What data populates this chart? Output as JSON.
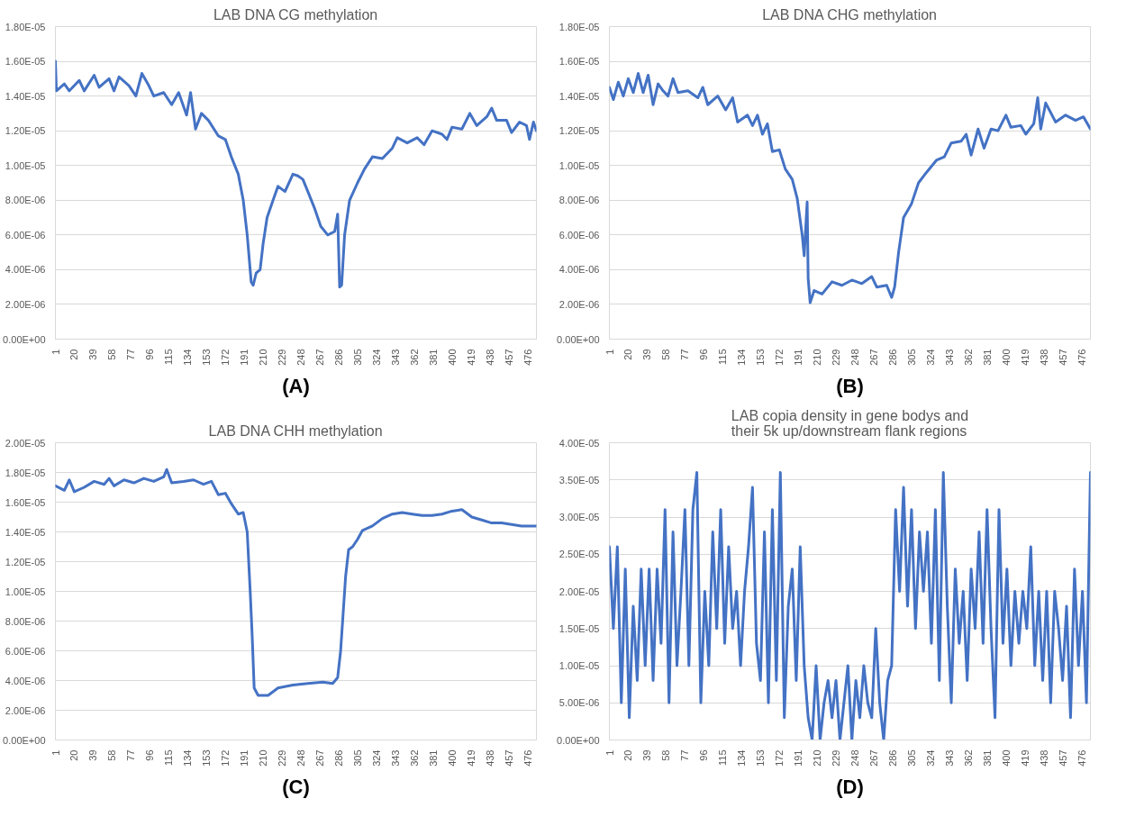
{
  "chart_data": [
    {
      "type": "line",
      "title": "LAB DNA CG methylation",
      "annotations": [
        "(A)"
      ],
      "grid": "y",
      "xlim": [
        1,
        485
      ],
      "xticks": [
        1,
        20,
        39,
        58,
        77,
        96,
        115,
        134,
        153,
        172,
        191,
        210,
        229,
        248,
        267,
        286,
        305,
        324,
        343,
        362,
        381,
        400,
        419,
        438,
        457,
        476
      ],
      "ylim": [
        0,
        1.8e-05
      ],
      "yticks": [
        {
          "value": 0,
          "label": "0.00E+00"
        },
        {
          "value": 2e-06,
          "label": "2.00E-06"
        },
        {
          "value": 4e-06,
          "label": "4.00E-06"
        },
        {
          "value": 6e-06,
          "label": "6.00E-06"
        },
        {
          "value": 8e-06,
          "label": "8.00E-06"
        },
        {
          "value": 1e-05,
          "label": "1.00E-05"
        },
        {
          "value": 1.2e-05,
          "label": "1.20E-05"
        },
        {
          "value": 1.4e-05,
          "label": "1.40E-05"
        },
        {
          "value": 1.6e-05,
          "label": "1.60E-05"
        },
        {
          "value": 1.8e-05,
          "label": "1.80E-05"
        }
      ],
      "series": [
        {
          "color": "#4472c4",
          "x": [
            1,
            2,
            10,
            15,
            25,
            30,
            40,
            45,
            55,
            60,
            65,
            75,
            82,
            88,
            95,
            100,
            110,
            118,
            125,
            133,
            137,
            142,
            148,
            155,
            165,
            172,
            178,
            185,
            190,
            194,
            198,
            200,
            203,
            207,
            210,
            214,
            220,
            225,
            232,
            240,
            245,
            250,
            255,
            262,
            268,
            275,
            282,
            285,
            287,
            289,
            292,
            297,
            305,
            312,
            320,
            330,
            340,
            345,
            355,
            365,
            372,
            380,
            390,
            395,
            400,
            410,
            418,
            425,
            435,
            440,
            445,
            455,
            460,
            468,
            475,
            478,
            482,
            485
          ],
          "values": [
            1.6e-05,
            1.43e-05,
            1.47e-05,
            1.43e-05,
            1.49e-05,
            1.43e-05,
            1.52e-05,
            1.45e-05,
            1.5e-05,
            1.43e-05,
            1.51e-05,
            1.46e-05,
            1.4e-05,
            1.53e-05,
            1.46e-05,
            1.4e-05,
            1.42e-05,
            1.35e-05,
            1.42e-05,
            1.29e-05,
            1.42e-05,
            1.21e-05,
            1.3e-05,
            1.26e-05,
            1.17e-05,
            1.15e-05,
            1.05e-05,
            9.5e-06,
            8e-06,
            6e-06,
            3.3e-06,
            3.1e-06,
            3.8e-06,
            4e-06,
            5.5e-06,
            7e-06,
            8e-06,
            8.8e-06,
            8.5e-06,
            9.5e-06,
            9.4e-06,
            9.2e-06,
            8.5e-06,
            7.5e-06,
            6.5e-06,
            6e-06,
            6.2e-06,
            7.2e-06,
            3e-06,
            3.1e-06,
            6e-06,
            8e-06,
            9e-06,
            9.8e-06,
            1.05e-05,
            1.04e-05,
            1.1e-05,
            1.16e-05,
            1.13e-05,
            1.16e-05,
            1.12e-05,
            1.2e-05,
            1.18e-05,
            1.15e-05,
            1.22e-05,
            1.21e-05,
            1.3e-05,
            1.23e-05,
            1.28e-05,
            1.33e-05,
            1.26e-05,
            1.26e-05,
            1.19e-05,
            1.25e-05,
            1.23e-05,
            1.15e-05,
            1.25e-05,
            1.2e-05
          ]
        }
      ]
    },
    {
      "type": "line",
      "title": "LAB DNA CHG methylation",
      "annotations": [
        "(B)"
      ],
      "grid": "y",
      "xlim": [
        1,
        485
      ],
      "xticks": [
        1,
        20,
        39,
        58,
        77,
        96,
        115,
        134,
        153,
        172,
        191,
        210,
        229,
        248,
        267,
        286,
        305,
        324,
        343,
        362,
        381,
        400,
        419,
        438,
        457,
        476
      ],
      "ylim": [
        0,
        1.8e-05
      ],
      "yticks": [
        {
          "value": 0,
          "label": "0.00E+00"
        },
        {
          "value": 2e-06,
          "label": "2.00E-06"
        },
        {
          "value": 4e-06,
          "label": "4.00E-06"
        },
        {
          "value": 6e-06,
          "label": "6.00E-06"
        },
        {
          "value": 8e-06,
          "label": "8.00E-06"
        },
        {
          "value": 1e-05,
          "label": "1.00E-05"
        },
        {
          "value": 1.2e-05,
          "label": "1.20E-05"
        },
        {
          "value": 1.4e-05,
          "label": "1.40E-05"
        },
        {
          "value": 1.6e-05,
          "label": "1.60E-05"
        },
        {
          "value": 1.8e-05,
          "label": "1.80E-05"
        }
      ],
      "series": [
        {
          "color": "#4472c4",
          "x": [
            1,
            5,
            10,
            15,
            20,
            25,
            30,
            35,
            40,
            45,
            50,
            55,
            60,
            65,
            70,
            80,
            90,
            95,
            100,
            110,
            118,
            125,
            130,
            140,
            145,
            150,
            155,
            160,
            165,
            172,
            178,
            185,
            190,
            195,
            197,
            200,
            201,
            203,
            207,
            215,
            225,
            235,
            245,
            255,
            265,
            270,
            280,
            285,
            288,
            292,
            297,
            305,
            312,
            320,
            330,
            338,
            345,
            355,
            360,
            365,
            372,
            378,
            385,
            392,
            400,
            405,
            415,
            420,
            428,
            432,
            435,
            440,
            450,
            460,
            470,
            478,
            485
          ],
          "values": [
            1.45e-05,
            1.38e-05,
            1.48e-05,
            1.4e-05,
            1.5e-05,
            1.42e-05,
            1.53e-05,
            1.42e-05,
            1.52e-05,
            1.35e-05,
            1.47e-05,
            1.43e-05,
            1.4e-05,
            1.5e-05,
            1.42e-05,
            1.43e-05,
            1.39e-05,
            1.45e-05,
            1.35e-05,
            1.4e-05,
            1.32e-05,
            1.39e-05,
            1.25e-05,
            1.29e-05,
            1.23e-05,
            1.29e-05,
            1.18e-05,
            1.24e-05,
            1.08e-05,
            1.09e-05,
            9.8e-06,
            9.2e-06,
            8.1e-06,
            6e-06,
            4.8e-06,
            7.9e-06,
            3.5e-06,
            2.1e-06,
            2.8e-06,
            2.6e-06,
            3.3e-06,
            3.1e-06,
            3.4e-06,
            3.2e-06,
            3.6e-06,
            3e-06,
            3.1e-06,
            2.4e-06,
            3e-06,
            5e-06,
            7e-06,
            7.8e-06,
            9e-06,
            9.6e-06,
            1.03e-05,
            1.05e-05,
            1.13e-05,
            1.14e-05,
            1.18e-05,
            1.06e-05,
            1.21e-05,
            1.1e-05,
            1.21e-05,
            1.2e-05,
            1.29e-05,
            1.22e-05,
            1.23e-05,
            1.18e-05,
            1.24e-05,
            1.39e-05,
            1.21e-05,
            1.36e-05,
            1.25e-05,
            1.29e-05,
            1.26e-05,
            1.28e-05,
            1.21e-05
          ]
        }
      ]
    },
    {
      "type": "line",
      "title": "LAB DNA CHH methylation",
      "annotations": [
        "(C)"
      ],
      "grid": "y",
      "xlim": [
        1,
        485
      ],
      "xticks": [
        1,
        20,
        39,
        58,
        77,
        96,
        115,
        134,
        153,
        172,
        191,
        210,
        229,
        248,
        267,
        286,
        305,
        324,
        343,
        362,
        381,
        400,
        419,
        438,
        457,
        476
      ],
      "ylim": [
        0,
        2e-05
      ],
      "yticks": [
        {
          "value": 0,
          "label": "0.00E+00"
        },
        {
          "value": 2e-06,
          "label": "2.00E-06"
        },
        {
          "value": 4e-06,
          "label": "4.00E-06"
        },
        {
          "value": 6e-06,
          "label": "6.00E-06"
        },
        {
          "value": 8e-06,
          "label": "8.00E-06"
        },
        {
          "value": 1e-05,
          "label": "1.00E-05"
        },
        {
          "value": 1.2e-05,
          "label": "1.20E-05"
        },
        {
          "value": 1.4e-05,
          "label": "1.40E-05"
        },
        {
          "value": 1.6e-05,
          "label": "1.60E-05"
        },
        {
          "value": 1.8e-05,
          "label": "1.80E-05"
        },
        {
          "value": 2e-05,
          "label": "2.00E-05"
        }
      ],
      "series": [
        {
          "color": "#4472c4",
          "x": [
            1,
            10,
            15,
            20,
            30,
            40,
            50,
            55,
            60,
            70,
            80,
            90,
            100,
            110,
            113,
            118,
            130,
            140,
            150,
            158,
            165,
            172,
            178,
            185,
            190,
            194,
            197,
            199,
            201,
            205,
            215,
            225,
            240,
            255,
            270,
            280,
            285,
            288,
            290,
            293,
            296,
            300,
            305,
            310,
            320,
            330,
            340,
            350,
            360,
            370,
            380,
            390,
            400,
            410,
            420,
            430,
            440,
            450,
            460,
            470,
            480,
            485
          ],
          "values": [
            1.71e-05,
            1.68e-05,
            1.75e-05,
            1.67e-05,
            1.7e-05,
            1.74e-05,
            1.72e-05,
            1.76e-05,
            1.71e-05,
            1.75e-05,
            1.73e-05,
            1.76e-05,
            1.74e-05,
            1.77e-05,
            1.82e-05,
            1.73e-05,
            1.74e-05,
            1.75e-05,
            1.72e-05,
            1.74e-05,
            1.65e-05,
            1.66e-05,
            1.59e-05,
            1.52e-05,
            1.53e-05,
            1.4e-05,
            1e-05,
            7e-06,
            3.5e-06,
            3e-06,
            3e-06,
            3.5e-06,
            3.7e-06,
            3.8e-06,
            3.9e-06,
            3.8e-06,
            4.2e-06,
            6e-06,
            8e-06,
            1.1e-05,
            1.28e-05,
            1.3e-05,
            1.35e-05,
            1.41e-05,
            1.44e-05,
            1.49e-05,
            1.52e-05,
            1.53e-05,
            1.52e-05,
            1.51e-05,
            1.51e-05,
            1.52e-05,
            1.54e-05,
            1.55e-05,
            1.5e-05,
            1.48e-05,
            1.46e-05,
            1.46e-05,
            1.45e-05,
            1.44e-05,
            1.44e-05,
            1.44e-05
          ]
        }
      ]
    },
    {
      "type": "line",
      "title": "LAB copia density in gene bodys and their 5k up/downstream flank regions",
      "annotations": [
        "(D)"
      ],
      "grid": "y",
      "xlim": [
        1,
        485
      ],
      "xticks": [
        1,
        20,
        39,
        58,
        77,
        96,
        115,
        134,
        153,
        172,
        191,
        210,
        229,
        248,
        267,
        286,
        305,
        324,
        343,
        362,
        381,
        400,
        419,
        438,
        457,
        476
      ],
      "ylim": [
        0,
        4e-05
      ],
      "yticks": [
        {
          "value": 0,
          "label": "0.00E+00"
        },
        {
          "value": 5e-06,
          "label": "5.00E-06"
        },
        {
          "value": 1e-05,
          "label": "1.00E-05"
        },
        {
          "value": 1.5e-05,
          "label": "1.50E-05"
        },
        {
          "value": 2e-05,
          "label": "2.00E-05"
        },
        {
          "value": 2.5e-05,
          "label": "2.50E-05"
        },
        {
          "value": 3e-05,
          "label": "3.00E-05"
        },
        {
          "value": 3.5e-05,
          "label": "3.50E-05"
        },
        {
          "value": 4e-05,
          "label": "4.00E-05"
        }
      ],
      "series": [
        {
          "color": "#4472c4",
          "x": [
            1,
            5,
            9,
            13,
            17,
            21,
            25,
            29,
            33,
            37,
            41,
            45,
            49,
            53,
            57,
            61,
            65,
            69,
            73,
            77,
            81,
            85,
            89,
            93,
            97,
            101,
            105,
            109,
            113,
            117,
            121,
            125,
            129,
            133,
            137,
            141,
            145,
            149,
            153,
            157,
            161,
            165,
            169,
            173,
            177,
            181,
            185,
            189,
            193,
            197,
            201,
            205,
            209,
            213,
            217,
            221,
            225,
            229,
            233,
            237,
            241,
            245,
            249,
            253,
            257,
            261,
            265,
            269,
            273,
            277,
            281,
            285,
            289,
            293,
            297,
            301,
            305,
            309,
            313,
            317,
            321,
            325,
            329,
            333,
            337,
            341,
            345,
            349,
            353,
            357,
            361,
            365,
            369,
            373,
            377,
            381,
            385,
            389,
            393,
            397,
            401,
            405,
            409,
            413,
            417,
            421,
            425,
            429,
            433,
            437,
            441,
            445,
            449,
            453,
            457,
            461,
            465,
            469,
            473,
            477,
            481,
            485
          ],
          "values": [
            2.6e-05,
            1.5e-05,
            2.6e-05,
            5e-06,
            2.3e-05,
            3e-06,
            1.8e-05,
            8e-06,
            2.3e-05,
            1e-05,
            2.3e-05,
            8e-06,
            2.3e-05,
            1.3e-05,
            3.1e-05,
            5e-06,
            2.8e-05,
            1e-05,
            2e-05,
            3.1e-05,
            1e-05,
            3.1e-05,
            3.6e-05,
            5e-06,
            2e-05,
            1e-05,
            2.8e-05,
            1.5e-05,
            3.1e-05,
            1.3e-05,
            2.6e-05,
            1.5e-05,
            2e-05,
            1e-05,
            2e-05,
            2.6e-05,
            3.4e-05,
            1.3e-05,
            8e-06,
            2.8e-05,
            5e-06,
            3.1e-05,
            8e-06,
            3.6e-05,
            3e-06,
            1.8e-05,
            2.3e-05,
            8e-06,
            2.6e-05,
            1e-05,
            3e-06,
            0,
            1e-05,
            0,
            5e-06,
            8e-06,
            3e-06,
            8e-06,
            0,
            5e-06,
            1e-05,
            0,
            8e-06,
            3e-06,
            1e-05,
            5e-06,
            3e-06,
            1.5e-05,
            5e-06,
            0,
            8e-06,
            1e-05,
            3.1e-05,
            2e-05,
            3.4e-05,
            1.8e-05,
            3.1e-05,
            1.5e-05,
            2.8e-05,
            2e-05,
            2.8e-05,
            1.3e-05,
            3.1e-05,
            8e-06,
            3.6e-05,
            1.8e-05,
            5e-06,
            2.3e-05,
            1.3e-05,
            2e-05,
            8e-06,
            2.3e-05,
            1.5e-05,
            2.8e-05,
            1.3e-05,
            3.1e-05,
            1.5e-05,
            3e-06,
            3.1e-05,
            1.3e-05,
            2.3e-05,
            1e-05,
            2e-05,
            1.3e-05,
            2e-05,
            1.5e-05,
            2.6e-05,
            1e-05,
            2e-05,
            8e-06,
            2e-05,
            5e-06,
            2e-05,
            1.5e-05,
            8e-06,
            1.8e-05,
            3e-06,
            2.3e-05,
            1e-05,
            2e-05,
            5e-06,
            3.6e-05
          ]
        }
      ]
    }
  ]
}
